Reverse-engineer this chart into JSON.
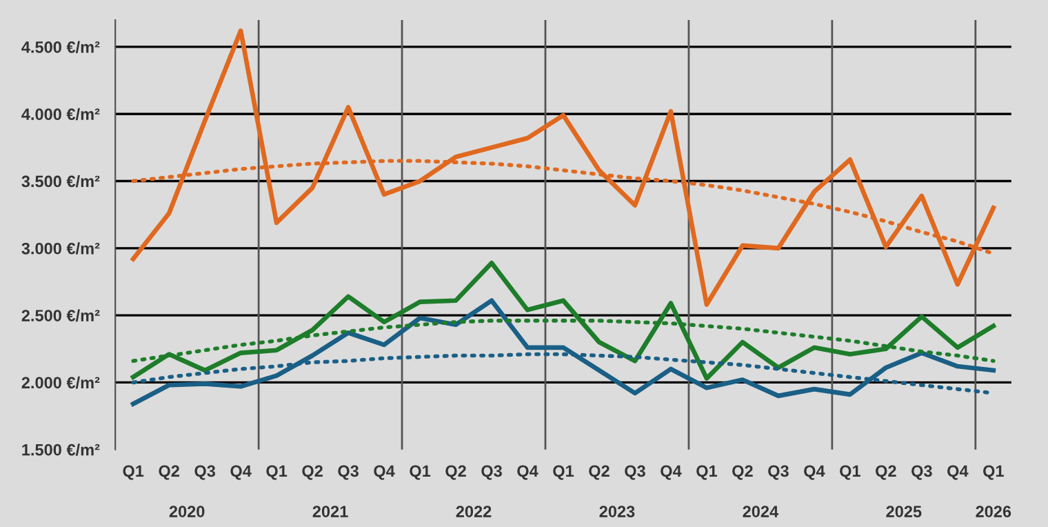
{
  "chart_data": {
    "type": "line",
    "categories": [
      "Q1",
      "Q2",
      "Q3",
      "Q4",
      "Q1",
      "Q2",
      "Q3",
      "Q4",
      "Q1",
      "Q2",
      "Q3",
      "Q4",
      "Q1",
      "Q2",
      "Q3",
      "Q4",
      "Q1",
      "Q2",
      "Q3",
      "Q4",
      "Q1",
      "Q2",
      "Q3",
      "Q4",
      "Q1"
    ],
    "annotations": [
      "2020",
      "2021",
      "2022",
      "2023",
      "2024",
      "2025",
      "2026"
    ],
    "series": [
      {
        "color": "#e0691f",
        "line_style": "solid",
        "values": [
          2920,
          3260,
          3950,
          4620,
          3190,
          3450,
          4050,
          3400,
          3500,
          3680,
          3750,
          3820,
          3990,
          3580,
          3320,
          4020,
          2580,
          3020,
          3000,
          3420,
          3660,
          3010,
          3390,
          2730,
          3300
        ]
      },
      {
        "color": "#1e7d2a",
        "line_style": "solid",
        "values": [
          2040,
          2210,
          2090,
          2220,
          2240,
          2390,
          2640,
          2450,
          2600,
          2610,
          2890,
          2540,
          2610,
          2300,
          2160,
          2590,
          2030,
          2300,
          2110,
          2260,
          2210,
          2250,
          2490,
          2260,
          2420
        ]
      },
      {
        "color": "#1a5f86",
        "line_style": "solid",
        "values": [
          1840,
          1980,
          1990,
          1970,
          2050,
          2200,
          2370,
          2280,
          2480,
          2430,
          2610,
          2260,
          2260,
          2090,
          1920,
          2100,
          1960,
          2020,
          1900,
          1950,
          1910,
          2110,
          2220,
          2120,
          2090
        ]
      },
      {
        "color": "#e0691f",
        "line_style": "dotted",
        "values": [
          3500,
          3530,
          3560,
          3590,
          3610,
          3630,
          3640,
          3650,
          3650,
          3640,
          3630,
          3610,
          3580,
          3550,
          3520,
          3500,
          3470,
          3430,
          3380,
          3330,
          3270,
          3200,
          3120,
          3050,
          2960
        ]
      },
      {
        "color": "#1e7d2a",
        "line_style": "dotted",
        "values": [
          2160,
          2200,
          2240,
          2280,
          2310,
          2350,
          2380,
          2410,
          2430,
          2450,
          2460,
          2460,
          2460,
          2460,
          2450,
          2440,
          2420,
          2400,
          2370,
          2340,
          2310,
          2270,
          2230,
          2200,
          2160
        ]
      },
      {
        "color": "#1a5f86",
        "line_style": "dotted",
        "values": [
          2000,
          2040,
          2070,
          2100,
          2120,
          2150,
          2160,
          2180,
          2190,
          2200,
          2200,
          2210,
          2210,
          2200,
          2190,
          2170,
          2150,
          2130,
          2100,
          2070,
          2040,
          2010,
          1980,
          1950,
          1920
        ]
      }
    ],
    "ylim": [
      1500,
      4700
    ],
    "yticks": [
      {
        "value": 1500,
        "label": "1.500 €/m²"
      },
      {
        "value": 2000,
        "label": "2.000 €/m²"
      },
      {
        "value": 2500,
        "label": "2.500 €/m²"
      },
      {
        "value": 3000,
        "label": "3.000 €/m²"
      },
      {
        "value": 3500,
        "label": "3.500 €/m²"
      },
      {
        "value": 4000,
        "label": "4.000 €/m²"
      },
      {
        "value": 4500,
        "label": "4.500 €/m²"
      }
    ],
    "grid": "y",
    "legend": false,
    "marker": "none"
  }
}
